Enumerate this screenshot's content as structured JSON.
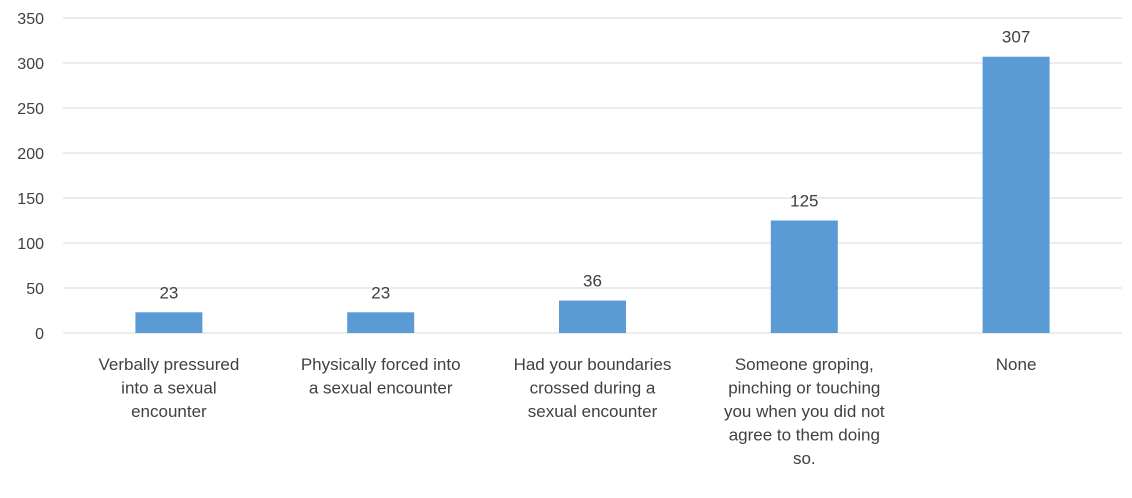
{
  "chart_data": {
    "type": "bar",
    "title": "",
    "xlabel": "",
    "ylabel": "",
    "ylim": [
      0,
      350
    ],
    "yticks": [
      0,
      50,
      100,
      150,
      200,
      250,
      300,
      350
    ],
    "grid": true,
    "legend": "none",
    "categories": [
      [
        "Verbally pressured",
        "into a sexual",
        "encounter"
      ],
      [
        "Physically forced into",
        "a sexual encounter"
      ],
      [
        "Had your boundaries",
        "crossed during a",
        "sexual encounter"
      ],
      [
        "Someone groping,",
        "pinching or touching",
        "you when you did not",
        "agree to them doing",
        "so."
      ],
      [
        "None"
      ]
    ],
    "values": [
      23,
      23,
      36,
      125,
      307
    ],
    "data_labels": [
      "23",
      "23",
      "36",
      "125",
      "307"
    ],
    "bar_color": "#5b9bd5",
    "grid_color": "#d9d9d9",
    "text_color": "#404040"
  }
}
